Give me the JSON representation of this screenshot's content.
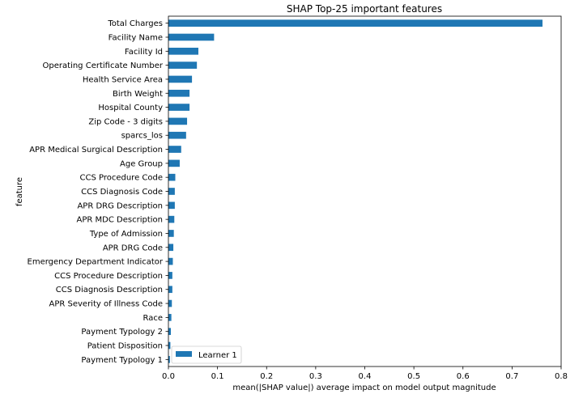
{
  "chart_data": {
    "type": "bar",
    "orientation": "horizontal",
    "title": "SHAP Top-25 important features",
    "xlabel": "mean(|SHAP value|) average impact on model output magnitude",
    "ylabel": "feature",
    "xlim": [
      0,
      0.8
    ],
    "xticks": [
      "0.0",
      "0.1",
      "0.2",
      "0.3",
      "0.4",
      "0.5",
      "0.6",
      "0.7",
      "0.8"
    ],
    "xtick_values": [
      0,
      0.1,
      0.2,
      0.3,
      0.4,
      0.5,
      0.6,
      0.7,
      0.8
    ],
    "grid": false,
    "legend_position": "lower-left",
    "bar_color": "#1f77b4",
    "categories": [
      "Total Charges",
      "Facility Name",
      "Facility Id",
      "Operating Certificate Number",
      "Health Service Area",
      "Birth Weight",
      "Hospital County",
      "Zip Code - 3 digits",
      "sparcs_los",
      "APR Medical Surgical Description",
      "Age Group",
      "CCS Procedure Code",
      "CCS Diagnosis Code",
      "APR DRG Description",
      "APR MDC Description",
      "Type of Admission",
      "APR DRG Code",
      "Emergency Department Indicator",
      "CCS Procedure Description",
      "CCS Diagnosis Description",
      "APR Severity of Illness Code",
      "Race",
      "Payment Typology 2",
      "Patient Disposition",
      "Payment Typology 1"
    ],
    "series": [
      {
        "name": "Learner 1",
        "values": [
          0.762,
          0.093,
          0.061,
          0.058,
          0.048,
          0.043,
          0.043,
          0.038,
          0.036,
          0.026,
          0.023,
          0.014,
          0.013,
          0.013,
          0.012,
          0.011,
          0.01,
          0.009,
          0.008,
          0.008,
          0.007,
          0.006,
          0.005,
          0.004,
          0.003
        ]
      }
    ]
  }
}
